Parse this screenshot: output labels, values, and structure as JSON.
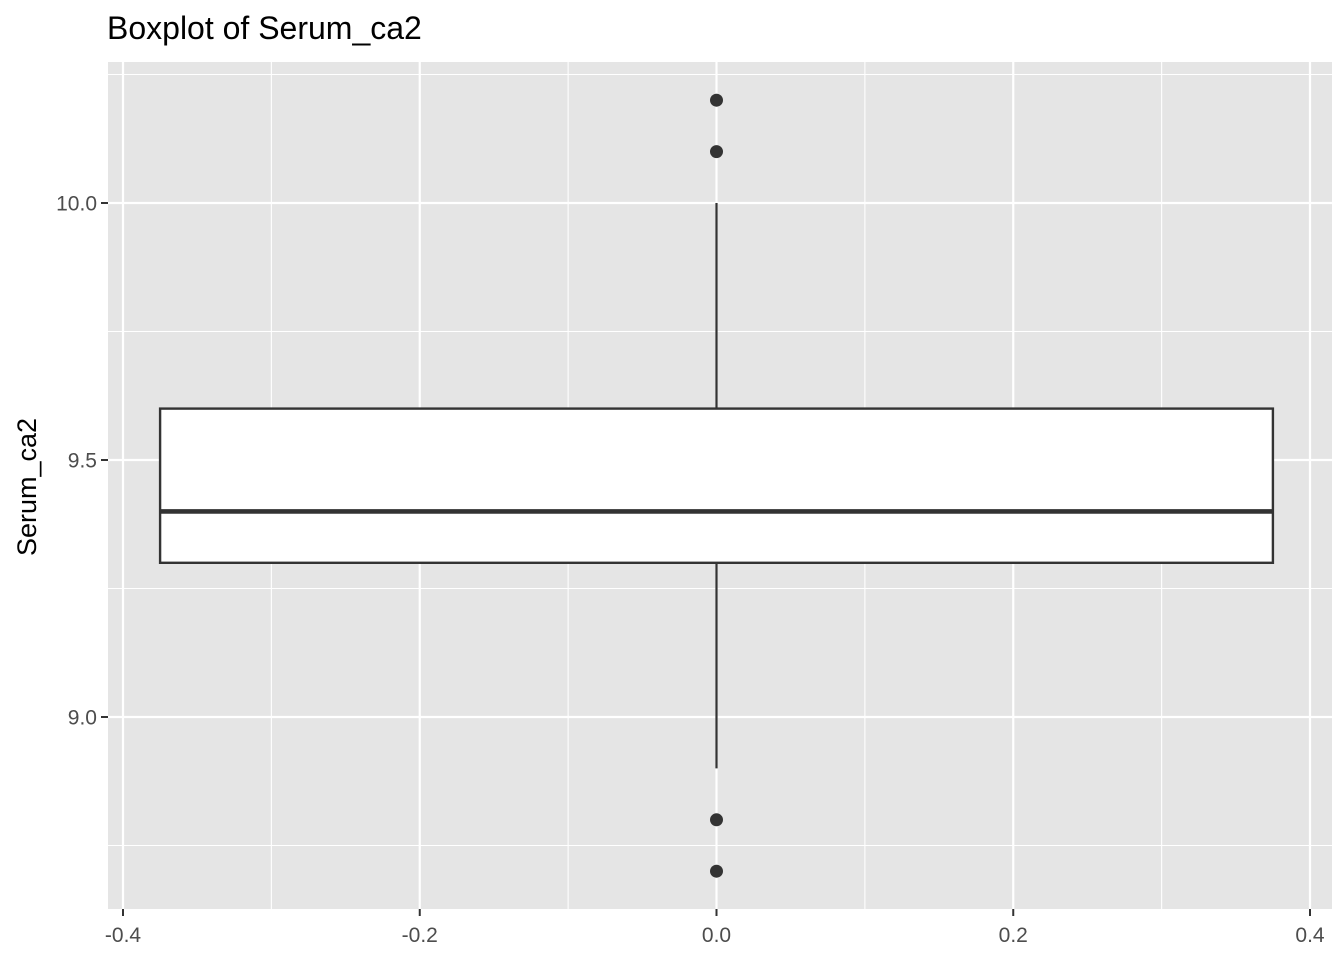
{
  "chart_data": {
    "type": "boxplot",
    "title": "Boxplot of Serum_ca2",
    "xlabel": "",
    "ylabel": "Serum_ca2",
    "xlim": [
      -0.4,
      0.4
    ],
    "ylim": [
      8.7,
      10.2
    ],
    "x_ticks": [
      -0.4,
      -0.2,
      0.0,
      0.2,
      0.4
    ],
    "x_tick_labels": [
      "-0.4",
      "-0.2",
      "0.0",
      "0.2",
      "0.4"
    ],
    "y_ticks": [
      9.0,
      9.5,
      10.0
    ],
    "y_tick_labels": [
      "9.0",
      "9.5",
      "10.0"
    ],
    "grid": true,
    "box": {
      "x_center": 0.0,
      "x_left": -0.375,
      "x_right": 0.375,
      "q1": 9.3,
      "median": 9.4,
      "q3": 9.6,
      "whisker_low": 8.9,
      "whisker_high": 10.0
    },
    "outliers": [
      10.2,
      10.1,
      8.8,
      8.7
    ]
  },
  "colors": {
    "panel_background": "#e5e5e5",
    "grid_line": "#ffffff",
    "box_fill": "#ffffff",
    "box_stroke": "#333333",
    "outlier": "#333333",
    "tick_text": "#4d4d4d"
  }
}
